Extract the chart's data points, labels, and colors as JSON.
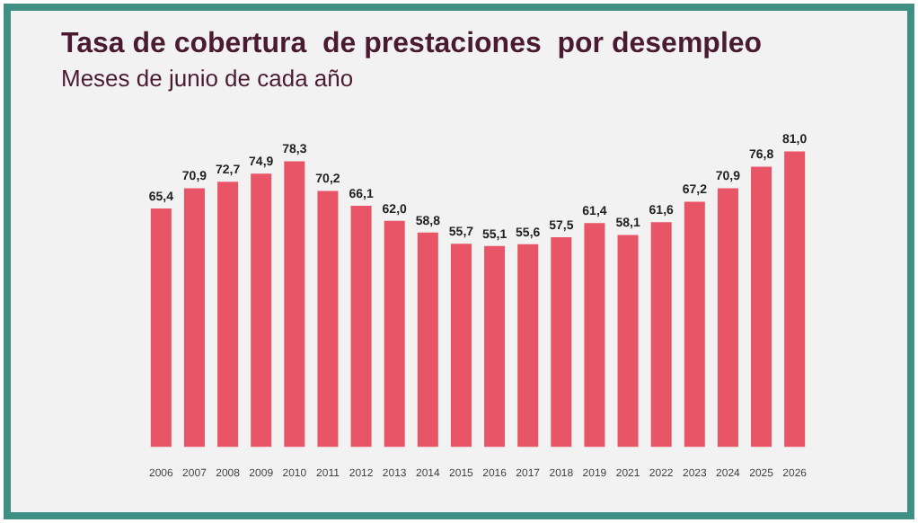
{
  "chart_data": {
    "type": "bar",
    "title": "Tasa de cobertura  de prestaciones  por desempleo",
    "subtitle": "Meses de junio de cada año",
    "categories": [
      "2006",
      "2007",
      "2008",
      "2009",
      "2010",
      "2011",
      "2012",
      "2013",
      "2014",
      "2015",
      "2016",
      "2017",
      "2018",
      "2019",
      "2021",
      "2022",
      "2023",
      "2024",
      "2025",
      "2026"
    ],
    "values": [
      65.4,
      70.9,
      72.7,
      74.9,
      78.3,
      70.2,
      66.1,
      62.0,
      58.8,
      55.7,
      55.1,
      55.6,
      57.5,
      61.4,
      58.1,
      61.6,
      67.2,
      70.9,
      76.8,
      81.0
    ],
    "value_labels": [
      "65,4",
      "70,9",
      "72,7",
      "74,9",
      "78,3",
      "70,2",
      "66,1",
      "62,0",
      "58,8",
      "55,7",
      "55,1",
      "55,6",
      "57,5",
      "61,4",
      "58,1",
      "61,6",
      "67,2",
      "70,9",
      "76,8",
      "81,0"
    ],
    "color": "#e85566",
    "tick_labels": "x",
    "grid": false,
    "legend": false
  }
}
